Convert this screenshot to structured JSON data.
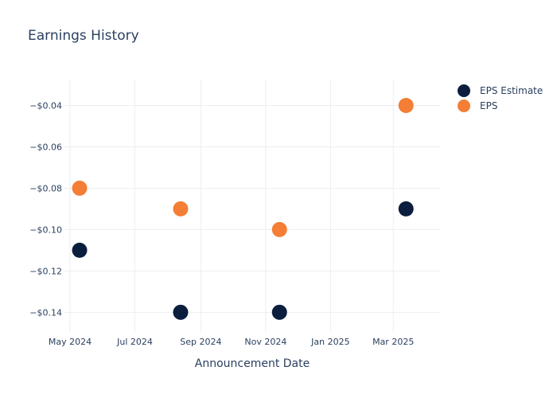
{
  "chart_data": {
    "type": "scatter",
    "title": "Earnings History",
    "xlabel": "Announcement Date",
    "ylabel": "",
    "x_ticks": [
      {
        "date": "2024-05-01",
        "label": "May 2024"
      },
      {
        "date": "2024-07-01",
        "label": "Jul 2024"
      },
      {
        "date": "2024-09-01",
        "label": "Sep 2024"
      },
      {
        "date": "2024-11-01",
        "label": "Nov 2024"
      },
      {
        "date": "2025-01-01",
        "label": "Jan 2025"
      },
      {
        "date": "2025-03-01",
        "label": "Mar 2025"
      }
    ],
    "y_ticks": [
      {
        "value": -0.04,
        "label": "−$0.04"
      },
      {
        "value": -0.06,
        "label": "−$0.06"
      },
      {
        "value": -0.08,
        "label": "−$0.08"
      },
      {
        "value": -0.1,
        "label": "−$0.10"
      },
      {
        "value": -0.12,
        "label": "−$0.12"
      },
      {
        "value": -0.14,
        "label": "−$0.14"
      }
    ],
    "xlim": [
      "2024-04-25",
      "2025-04-14"
    ],
    "ylim": [
      -0.1495,
      -0.0275
    ],
    "grid": true,
    "legend_position": "top-right",
    "series": [
      {
        "name": "EPS Estimate",
        "color": "#0c1e3e",
        "points": [
          {
            "x": "2024-05-10",
            "y": -0.11
          },
          {
            "x": "2024-08-13",
            "y": -0.14
          },
          {
            "x": "2024-11-14",
            "y": -0.14
          },
          {
            "x": "2025-03-13",
            "y": -0.09
          }
        ]
      },
      {
        "name": "EPS",
        "color": "#f47e35",
        "points": [
          {
            "x": "2024-05-10",
            "y": -0.08
          },
          {
            "x": "2024-08-13",
            "y": -0.09
          },
          {
            "x": "2024-11-14",
            "y": -0.1
          },
          {
            "x": "2025-03-13",
            "y": -0.04
          }
        ]
      }
    ]
  }
}
